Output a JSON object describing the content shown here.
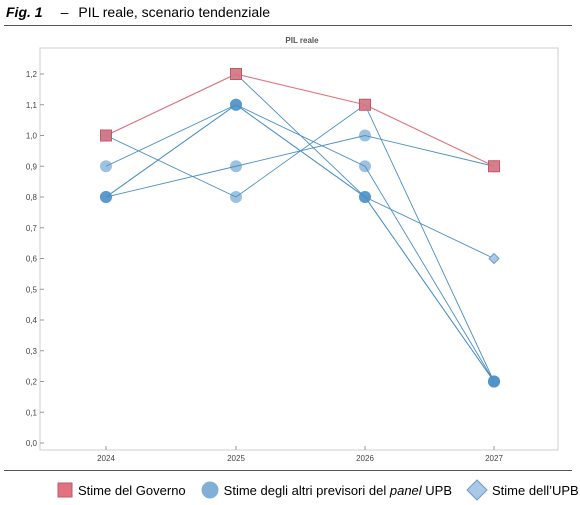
{
  "figure": {
    "number": "Fig. 1",
    "separator": "–",
    "title": "PIL reale, scenario tendenziale"
  },
  "chart_data": {
    "type": "line",
    "title": "PIL reale",
    "categories": [
      "2024",
      "2025",
      "2026",
      "2027"
    ],
    "ylim": [
      0,
      1.2
    ],
    "yticks": [
      "0,0",
      "0,1",
      "0,2",
      "0,3",
      "0,4",
      "0,5",
      "0,6",
      "0,7",
      "0,8",
      "0,9",
      "1,0",
      "1,1",
      "1,2"
    ],
    "grid": false,
    "legend_position": "bottom",
    "series": [
      {
        "name": "Stime del Governo",
        "kind": "governo",
        "color": "#e0737f",
        "values": [
          1.0,
          1.2,
          1.1,
          0.9
        ]
      },
      {
        "kind": "panel",
        "color": "#4a8fc6",
        "values": [
          1.0,
          1.2,
          0.8,
          0.2
        ]
      },
      {
        "kind": "panel",
        "color": "#4a8fc6",
        "values": [
          0.9,
          1.1,
          0.8,
          0.2
        ]
      },
      {
        "kind": "panel",
        "color": "#4a8fc6",
        "values": [
          0.8,
          1.1,
          0.9,
          0.2
        ]
      },
      {
        "kind": "panel",
        "color": "#4a8fc6",
        "values": [
          0.8,
          0.9,
          1.0,
          0.9
        ]
      },
      {
        "kind": "panel",
        "color": "#4a8fc6",
        "values": [
          1.0,
          0.8,
          1.1,
          0.2
        ]
      },
      {
        "kind": "upb",
        "color": "#4a8fc6",
        "values": [
          0.8,
          1.1,
          0.8,
          0.6
        ]
      }
    ]
  },
  "legend": {
    "governo": "Stime del Governo",
    "panel_before": "Stime degli altri previsori del ",
    "panel_italic": "panel",
    "panel_after": " UPB",
    "upb": "Stime dell’UPB"
  },
  "colors": {
    "governo_fill": "#e0737f",
    "governo_stroke": "#c25764",
    "panel_fill": "#4a8fc6",
    "upb_fill": "#a9c9e6",
    "upb_stroke": "#6d9dc8"
  }
}
